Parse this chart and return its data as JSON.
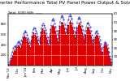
{
  "title": "Solar PV/Inverter Performance Total PV Panel Power Output & Solar Radiation",
  "subtitle": "Total: 5000 kWh  ——",
  "bg_color": "#ffffff",
  "plot_bg": "#ffffff",
  "grid_color": "#aaaaaa",
  "bar_color": "#dd0000",
  "line_color": "#0000cc",
  "bar_values": [
    30,
    60,
    100,
    150,
    200,
    250,
    300,
    280,
    320,
    350,
    380,
    400,
    370,
    340,
    420,
    480,
    520,
    560,
    580,
    550,
    510,
    470,
    430,
    390,
    350,
    500,
    560,
    610,
    640,
    620,
    580,
    540,
    490,
    440,
    390,
    560,
    630,
    680,
    710,
    690,
    650,
    600,
    550,
    490,
    430,
    380,
    620,
    700,
    760,
    790,
    770,
    730,
    670,
    600,
    530,
    470,
    680,
    760,
    820,
    850,
    830,
    790,
    730,
    660,
    590,
    700,
    780,
    840,
    870,
    850,
    810,
    750,
    680,
    610,
    540,
    660,
    740,
    800,
    830,
    810,
    770,
    710,
    640,
    570,
    500,
    610,
    680,
    730,
    750,
    730,
    690,
    630,
    560,
    490,
    420,
    510,
    560,
    590,
    600,
    570,
    530,
    470,
    400,
    330,
    260,
    360,
    400,
    420,
    410,
    380,
    330,
    270,
    200,
    130,
    70
  ],
  "line_values": [
    3,
    5,
    8,
    12,
    16,
    20,
    22,
    21,
    23,
    25,
    27,
    28,
    26,
    24,
    29,
    33,
    36,
    38,
    40,
    38,
    35,
    32,
    30,
    27,
    24,
    34,
    38,
    42,
    44,
    43,
    40,
    37,
    34,
    30,
    27,
    38,
    43,
    47,
    49,
    47,
    44,
    41,
    37,
    33,
    29,
    26,
    42,
    47,
    52,
    54,
    52,
    49,
    45,
    40,
    36,
    32,
    46,
    51,
    56,
    58,
    56,
    53,
    48,
    43,
    38,
    47,
    53,
    57,
    59,
    57,
    54,
    49,
    44,
    39,
    35,
    44,
    50,
    54,
    56,
    54,
    51,
    46,
    41,
    36,
    31,
    40,
    45,
    49,
    50,
    48,
    45,
    40,
    35,
    30,
    25,
    33,
    37,
    39,
    40,
    37,
    34,
    30,
    25,
    20,
    15,
    22,
    25,
    27,
    26,
    24,
    20,
    16,
    11,
    7,
    3
  ],
  "ylim": [
    0,
    1000
  ],
  "y2lim": [
    0,
    60
  ],
  "yticks_left": [
    200,
    400,
    600,
    800
  ],
  "y2ticks": [
    10,
    20,
    30,
    40,
    50,
    60
  ],
  "n_bars": 115,
  "x_month_labels": [
    "Nov'13",
    "Dec",
    "Jan'14",
    "Feb",
    "Mar",
    "Apr",
    "May",
    "Jun",
    "Jul",
    "Aug",
    "Sep",
    "Oct",
    "Nov"
  ],
  "title_fontsize": 4.2,
  "tick_fontsize": 2.8,
  "subtitle_fontsize": 2.8
}
